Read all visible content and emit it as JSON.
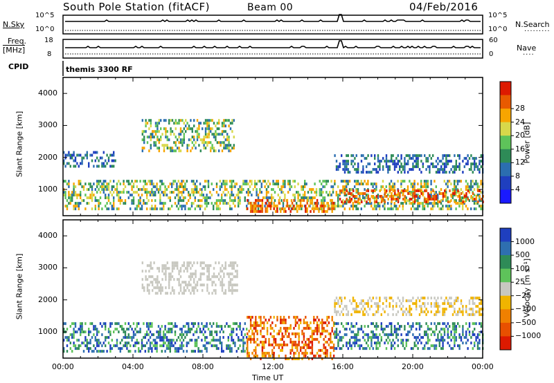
{
  "header": {
    "station": "South Pole Station (fitACF)",
    "beam": "Beam 00",
    "date": "04/Feb/2016"
  },
  "top_panels": {
    "nsky": {
      "label": "N.Sky",
      "tick_top": "10^5",
      "tick_bottom": "10^0"
    },
    "nsearch": {
      "label": "N.Search",
      "tick_top": "10^5",
      "tick_bottom": "10^0"
    },
    "freq": {
      "label_line1": "Freq.",
      "label_line2": "[MHz]",
      "tick_top": "18",
      "tick_bottom": "8"
    },
    "nave": {
      "label": "Nave",
      "tick_top": "60",
      "tick_bottom": "0"
    },
    "cpid": {
      "label": "CPID",
      "value": "themis 3300 RF"
    }
  },
  "chart_data": [
    {
      "type": "heatmap",
      "panel": "power",
      "ylabel": "Slant Range [km]",
      "xlabel": "Time UT",
      "ylim": [
        180,
        4500
      ],
      "xlim": [
        0,
        24
      ],
      "y_ticks": [
        "1000",
        "2000",
        "3000",
        "4000"
      ],
      "x_ticks": [
        "00:00",
        "04:00",
        "08:00",
        "12:00",
        "16:00",
        "20:00",
        "00:00"
      ],
      "colorbar": {
        "label": "Power [dB]",
        "ticks": [
          "4",
          "8",
          "12",
          "16",
          "20",
          "24",
          "28"
        ],
        "colors": [
          "#1a1aff",
          "#1f3fbf",
          "#2b6eb0",
          "#2e8b57",
          "#5ec35a",
          "#d8d84a",
          "#f7a500",
          "#e85a00",
          "#dd1a00"
        ]
      },
      "echo_regions": [
        {
          "t_start": 0.0,
          "t_end": 24.0,
          "r_min": 400,
          "r_max": 1300,
          "level": "mid"
        },
        {
          "t_start": 0.0,
          "t_end": 3.0,
          "r_min": 1700,
          "r_max": 2200,
          "level": "low"
        },
        {
          "t_start": 4.5,
          "t_end": 9.8,
          "r_min": 2200,
          "r_max": 3200,
          "level": "mid"
        },
        {
          "t_start": 15.5,
          "t_end": 24.0,
          "r_min": 1500,
          "r_max": 2100,
          "level": "low"
        },
        {
          "t_start": 10.5,
          "t_end": 15.5,
          "r_min": 300,
          "r_max": 700,
          "level": "high"
        },
        {
          "t_start": 15.8,
          "t_end": 24.0,
          "r_min": 600,
          "r_max": 1000,
          "level": "high"
        }
      ]
    },
    {
      "type": "heatmap",
      "panel": "velocity",
      "ylabel": "Slant Range [km]",
      "xlabel": "Time UT",
      "ylim": [
        180,
        4500
      ],
      "xlim": [
        0,
        24
      ],
      "y_ticks": [
        "1000",
        "2000",
        "3000",
        "4000"
      ],
      "x_ticks": [
        "00:00",
        "04:00",
        "08:00",
        "12:00",
        "16:00",
        "20:00",
        "00:00"
      ],
      "colorbar": {
        "label": "Velocity [m s⁻¹]",
        "ticks": [
          "1000",
          "500",
          "100",
          "25",
          "−25",
          "−100",
          "−500",
          "−1000"
        ],
        "colors": [
          "#1f3fbf",
          "#2e6fb0",
          "#2e8b57",
          "#5ec35a",
          "#c8c8c0",
          "#f0b400",
          "#f08000",
          "#e85000",
          "#dd1a00"
        ]
      },
      "echo_regions": [
        {
          "t_start": 0.0,
          "t_end": 10.5,
          "r_min": 400,
          "r_max": 1300,
          "level": "toward"
        },
        {
          "t_start": 4.5,
          "t_end": 10.0,
          "r_min": 2200,
          "r_max": 3200,
          "level": "zero"
        },
        {
          "t_start": 10.5,
          "t_end": 15.5,
          "r_min": 200,
          "r_max": 1500,
          "level": "away"
        },
        {
          "t_start": 15.5,
          "t_end": 24.0,
          "r_min": 500,
          "r_max": 1300,
          "level": "toward"
        },
        {
          "t_start": 15.5,
          "t_end": 24.0,
          "r_min": 1500,
          "r_max": 2100,
          "level": "away_weak"
        }
      ]
    }
  ]
}
